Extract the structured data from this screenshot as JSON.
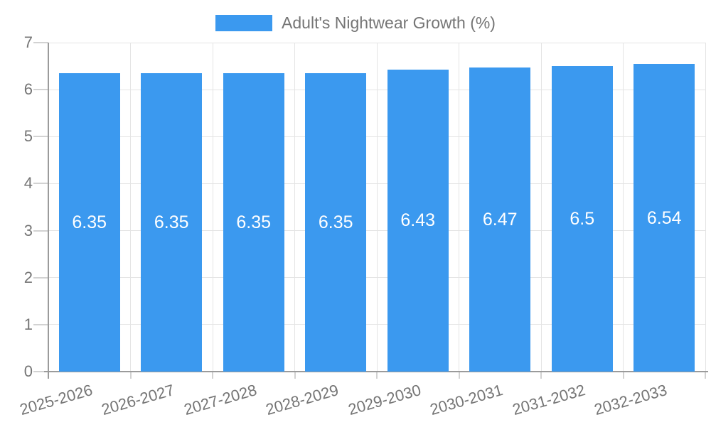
{
  "legend": {
    "label": "Adult's Nightwear Growth (%)",
    "swatch_color": "#3B99EF"
  },
  "chart_data": {
    "type": "bar",
    "title": "Adult's Nightwear Growth (%)",
    "series_name": "Adult's Nightwear Growth (%)",
    "categories": [
      "2025-2026",
      "2026-2027",
      "2027-2028",
      "2028-2029",
      "2029-2030",
      "2030-2031",
      "2031-2032",
      "2032-2033"
    ],
    "values": [
      6.35,
      6.35,
      6.35,
      6.35,
      6.43,
      6.47,
      6.5,
      6.54
    ],
    "value_labels": [
      "6.35",
      "6.35",
      "6.35",
      "6.35",
      "6.43",
      "6.47",
      "6.5",
      "6.54"
    ],
    "xlabel": "",
    "ylabel": "",
    "ylim": [
      0,
      7
    ],
    "yticks": [
      0,
      1,
      2,
      3,
      4,
      5,
      6,
      7
    ],
    "ytick_labels": [
      "0",
      "1",
      "2",
      "3",
      "4",
      "5",
      "6",
      "7"
    ],
    "grid": "on",
    "legend_position": "top",
    "bar_color": "#3B99EF",
    "value_label_color": "#ffffff",
    "axis_text_color": "#757575",
    "grid_color": "#e4e4e4",
    "axis_line_color": "#9b9b9b"
  }
}
